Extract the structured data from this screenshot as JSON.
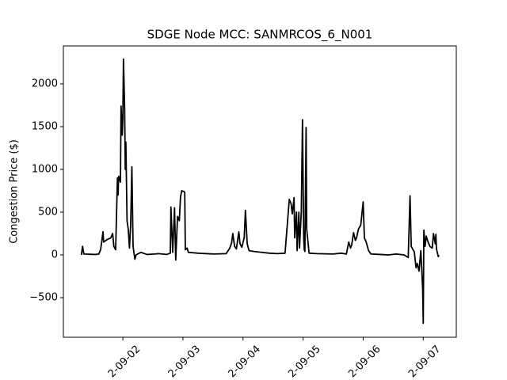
{
  "chart_data": {
    "type": "line",
    "title": "SDGE Node MCC: SANMRCOS_6_N001",
    "ylabel": "Congestion Price ($)",
    "x": [
      1.31,
      1.33,
      1.35,
      1.54,
      1.6,
      1.63,
      1.66,
      1.67,
      1.68,
      1.74,
      1.8,
      1.83,
      1.85,
      1.88,
      1.91,
      1.92,
      1.93,
      1.96,
      1.97,
      1.99,
      2.0,
      2.01,
      2.03,
      2.04,
      2.05,
      2.07,
      2.09,
      2.11,
      2.13,
      2.15,
      2.17,
      2.2,
      2.22,
      2.3,
      2.4,
      2.53,
      2.59,
      2.66,
      2.73,
      2.79,
      2.8,
      2.83,
      2.86,
      2.88,
      2.91,
      2.94,
      2.96,
      2.98,
      3.02,
      3.03,
      3.04,
      3.07,
      3.09,
      3.25,
      3.52,
      3.72,
      3.78,
      3.81,
      3.83,
      3.86,
      3.89,
      3.93,
      3.95,
      3.98,
      4.02,
      4.04,
      4.07,
      4.1,
      4.18,
      4.31,
      4.44,
      4.57,
      4.7,
      4.77,
      4.8,
      4.82,
      4.85,
      4.86,
      4.89,
      4.9,
      4.93,
      4.94,
      4.97,
      4.99,
      5.01,
      5.02,
      5.03,
      5.05,
      5.06,
      5.1,
      5.23,
      5.5,
      5.63,
      5.72,
      5.76,
      5.79,
      5.81,
      5.84,
      5.87,
      5.89,
      5.92,
      5.96,
      6.0,
      6.02,
      6.05,
      6.09,
      6.13,
      6.29,
      6.42,
      6.55,
      6.68,
      6.75,
      6.78,
      6.8,
      6.83,
      6.85,
      6.88,
      6.9,
      6.93,
      6.96,
      6.99,
      7.0,
      7.01,
      7.03,
      7.05,
      7.08,
      7.11,
      7.15,
      7.17,
      7.2,
      7.21,
      7.22,
      7.25,
      7.26
    ],
    "series": [
      {
        "color": "#000000",
        "values": [
          0,
          100,
          10,
          5,
          10,
          60,
          220,
          270,
          150,
          180,
          200,
          250,
          100,
          60,
          900,
          700,
          920,
          850,
          1740,
          1400,
          1600,
          2290,
          1700,
          1000,
          1320,
          400,
          300,
          80,
          350,
          1030,
          100,
          -50,
          0,
          30,
          5,
          10,
          15,
          10,
          5,
          20,
          560,
          30,
          550,
          -60,
          450,
          400,
          680,
          750,
          740,
          730,
          60,
          80,
          30,
          20,
          10,
          15,
          80,
          140,
          250,
          100,
          70,
          270,
          130,
          90,
          200,
          520,
          130,
          50,
          40,
          30,
          20,
          15,
          20,
          650,
          600,
          480,
          670,
          200,
          500,
          50,
          500,
          80,
          500,
          1580,
          200,
          60,
          40,
          1490,
          300,
          20,
          15,
          10,
          20,
          10,
          150,
          80,
          120,
          260,
          170,
          200,
          300,
          350,
          620,
          200,
          150,
          50,
          10,
          5,
          0,
          10,
          0,
          -30,
          690,
          100,
          60,
          40,
          -150,
          -100,
          -190,
          50,
          -400,
          -800,
          290,
          100,
          220,
          150,
          100,
          80,
          250,
          130,
          240,
          70,
          -20,
          0
        ]
      }
    ],
    "xlim": [
      1.01,
      7.55
    ],
    "ylim": [
      -963,
      2444
    ],
    "xticks": [
      {
        "value": 2,
        "label": "2-09-02"
      },
      {
        "value": 3,
        "label": "2-09-03"
      },
      {
        "value": 4,
        "label": "2-09-04"
      },
      {
        "value": 5,
        "label": "2-09-05"
      },
      {
        "value": 6,
        "label": "2-09-06"
      },
      {
        "value": 7,
        "label": "2-09-07"
      }
    ],
    "yticks": [
      {
        "value": -500,
        "label": "−500"
      },
      0,
      500,
      1000,
      1500,
      2000
    ]
  }
}
